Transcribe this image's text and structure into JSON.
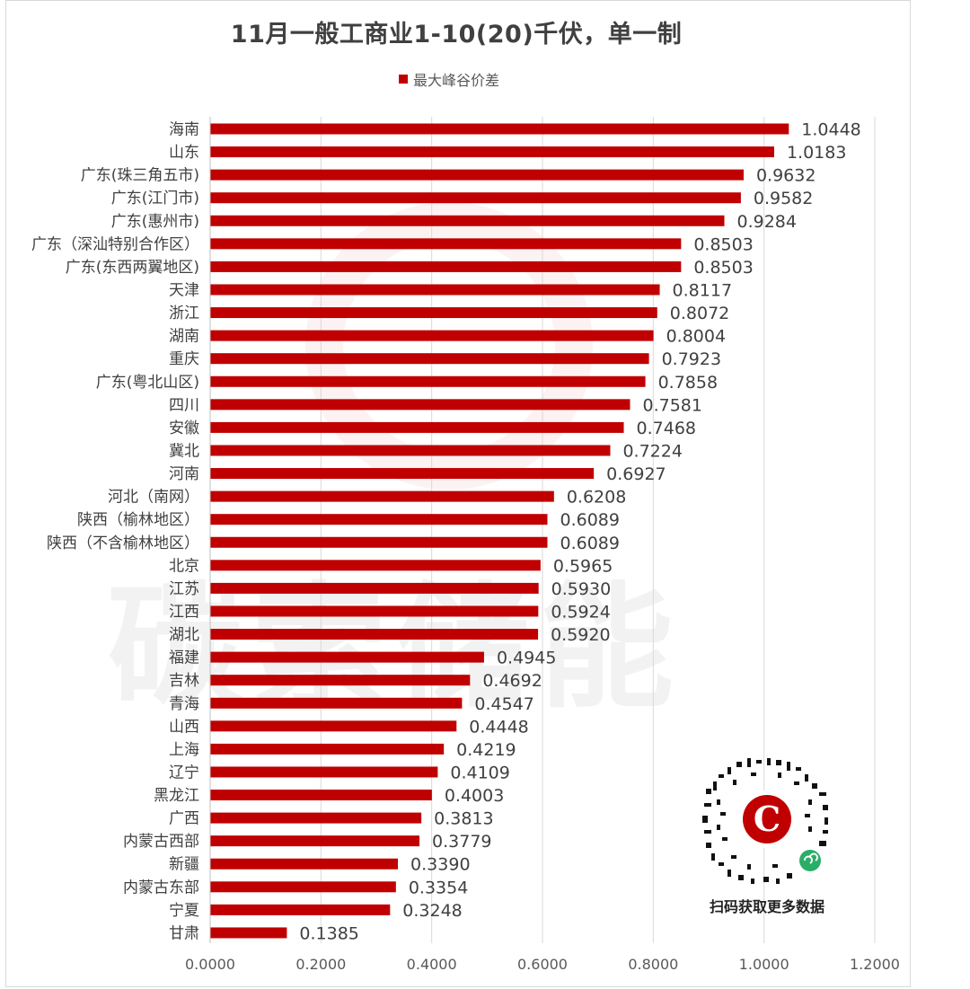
{
  "chart_data": {
    "type": "bar",
    "orientation": "horizontal",
    "title": "11月一般工商业1-10(20)千伏，单一制",
    "legend": "最大峰谷价差",
    "legend_position": "top",
    "xlim": [
      0,
      1.2
    ],
    "x_ticks": [
      "0.0000",
      "0.2000",
      "0.4000",
      "0.6000",
      "0.8000",
      "1.0000",
      "1.2000"
    ],
    "grid": true,
    "color": "#c00000",
    "categories": [
      "海南",
      "山东",
      "广东(珠三角五市)",
      "广东(江门市)",
      "广东(惠州市)",
      "广东（深汕特别合作区）",
      "广东(东西两翼地区)",
      "天津",
      "浙江",
      "湖南",
      "重庆",
      "广东(粤北山区)",
      "四川",
      "安徽",
      "冀北",
      "河南",
      "河北（南网）",
      "陕西（榆林地区）",
      "陕西（不含榆林地区）",
      "北京",
      "江苏",
      "江西",
      "湖北",
      "福建",
      "吉林",
      "青海",
      "山西",
      "上海",
      "辽宁",
      "黑龙江",
      "广西",
      "内蒙古西部",
      "新疆",
      "内蒙古东部",
      "宁夏",
      "甘肃"
    ],
    "values": [
      1.0448,
      1.0183,
      0.9632,
      0.9582,
      0.9284,
      0.8503,
      0.8503,
      0.8117,
      0.8072,
      0.8004,
      0.7923,
      0.7858,
      0.7581,
      0.7468,
      0.7224,
      0.6927,
      0.6208,
      0.6089,
      0.6089,
      0.5965,
      0.593,
      0.5924,
      0.592,
      0.4945,
      0.4692,
      0.4547,
      0.4448,
      0.4219,
      0.4109,
      0.4003,
      0.3813,
      0.3779,
      0.339,
      0.3354,
      0.3248,
      0.1385
    ],
    "value_labels": [
      "1.0448",
      "1.0183",
      "0.9632",
      "0.9582",
      "0.9284",
      "0.8503",
      "0.8503",
      "0.8117",
      "0.8072",
      "0.8004",
      "0.7923",
      "0.7858",
      "0.7581",
      "0.7468",
      "0.7224",
      "0.6927",
      "0.6208",
      "0.6089",
      "0.6089",
      "0.5965",
      "0.5930",
      "0.5924",
      "0.5920",
      "0.4945",
      "0.4692",
      "0.4547",
      "0.4448",
      "0.4219",
      "0.4109",
      "0.4003",
      "0.3813",
      "0.3779",
      "0.3390",
      "0.3354",
      "0.3248",
      "0.1385"
    ]
  },
  "watermark": "碳索储能",
  "qr": {
    "caption": "扫码获取更多数据",
    "logo_letter": "C"
  }
}
